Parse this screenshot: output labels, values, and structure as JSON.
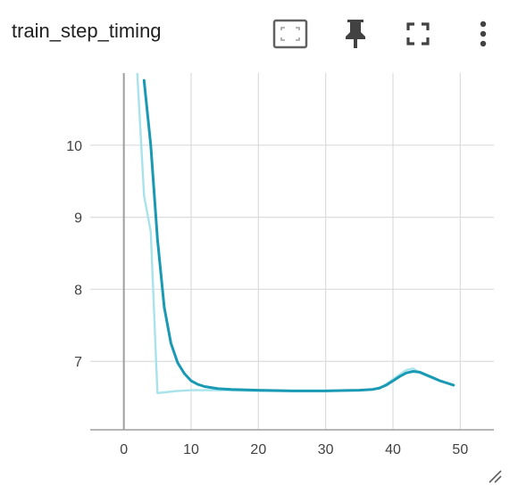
{
  "card": {
    "title": "train_step_timing",
    "toolbar": {
      "data_selection_icon": "crop-free-icon",
      "pin_icon": "pin-icon",
      "fullscreen_icon": "fullscreen-icon",
      "more_icon": "more-vert-icon"
    }
  },
  "colors": {
    "smoothed_line": "#1999b3",
    "raw_line": "#a8e3ec",
    "grid": "#dadce0",
    "axis": "#9e9e9e"
  },
  "chart_data": {
    "type": "line",
    "title": "train_step_timing",
    "xlabel": "",
    "ylabel": "",
    "xlim": [
      -5,
      55
    ],
    "ylim": [
      6.05,
      11.0
    ],
    "xticks": [
      0,
      10,
      20,
      30,
      40,
      50
    ],
    "yticks": [
      7,
      8,
      9,
      10
    ],
    "grid": true,
    "series": [
      {
        "role": "raw",
        "x": [
          2,
          3,
          4,
          5,
          6,
          8,
          10,
          15,
          20,
          25,
          30,
          35,
          38,
          40,
          42,
          43,
          44,
          46,
          48,
          49
        ],
        "y": [
          11.0,
          9.3,
          8.8,
          6.56,
          6.57,
          6.59,
          6.6,
          6.6,
          6.59,
          6.59,
          6.59,
          6.6,
          6.62,
          6.75,
          6.88,
          6.9,
          6.84,
          6.76,
          6.7,
          6.67
        ]
      },
      {
        "role": "smoothed",
        "x": [
          3,
          4,
          5,
          6,
          7,
          8,
          9,
          10,
          11,
          12,
          14,
          16,
          20,
          25,
          30,
          35,
          37,
          38,
          39,
          40,
          41,
          42,
          43,
          44,
          45,
          46,
          47,
          48,
          49
        ],
        "y": [
          10.9,
          10.0,
          8.7,
          7.75,
          7.25,
          6.98,
          6.83,
          6.73,
          6.68,
          6.65,
          6.62,
          6.61,
          6.6,
          6.59,
          6.59,
          6.6,
          6.61,
          6.63,
          6.67,
          6.73,
          6.79,
          6.84,
          6.86,
          6.85,
          6.81,
          6.77,
          6.73,
          6.7,
          6.67
        ]
      }
    ]
  }
}
